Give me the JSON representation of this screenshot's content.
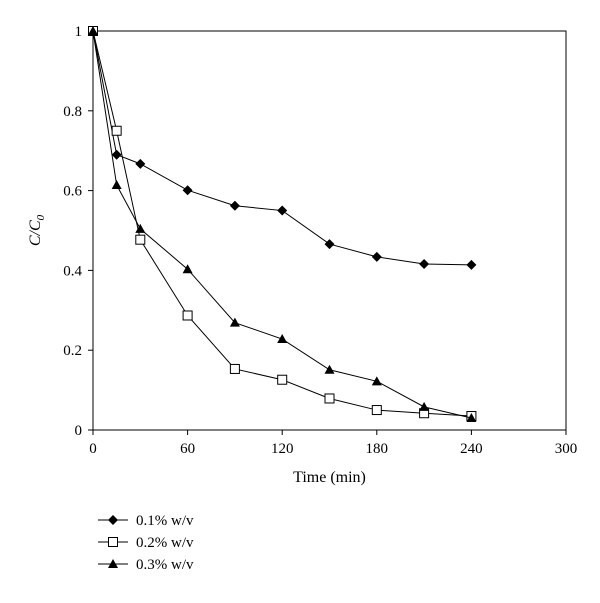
{
  "chart_data": {
    "type": "line",
    "title": "",
    "xlabel": "Time (min)",
    "ylabel_main": "C/C",
    "ylabel_sub": "0",
    "xlim": [
      0,
      300
    ],
    "ylim": [
      0,
      1
    ],
    "xticks": [
      0,
      60,
      120,
      180,
      240,
      300
    ],
    "yticks": [
      0,
      0.2,
      0.4,
      0.6,
      0.8,
      1
    ],
    "ytick_labels": [
      "0",
      "0.2",
      "0.4",
      "0.6",
      "0.8",
      "1"
    ],
    "grid": false,
    "legend_position": "bottom-left",
    "line_color": "#000000",
    "series": [
      {
        "name": "0.1% w/v",
        "marker": "diamond",
        "x": [
          0,
          15,
          30,
          60,
          90,
          120,
          150,
          180,
          210,
          240
        ],
        "y": [
          1.0,
          0.69,
          0.667,
          0.601,
          0.562,
          0.55,
          0.466,
          0.434,
          0.416,
          0.414
        ]
      },
      {
        "name": "0.2% w/v",
        "marker": "square",
        "x": [
          0,
          15,
          30,
          60,
          90,
          120,
          150,
          180,
          210,
          240
        ],
        "y": [
          1.0,
          0.75,
          0.477,
          0.287,
          0.153,
          0.126,
          0.079,
          0.05,
          0.042,
          0.035
        ]
      },
      {
        "name": "0.3% w/v",
        "marker": "triangle",
        "x": [
          0,
          15,
          30,
          60,
          90,
          120,
          150,
          180,
          210,
          240
        ],
        "y": [
          1.0,
          0.614,
          0.504,
          0.403,
          0.269,
          0.228,
          0.151,
          0.122,
          0.058,
          0.03
        ]
      }
    ]
  }
}
